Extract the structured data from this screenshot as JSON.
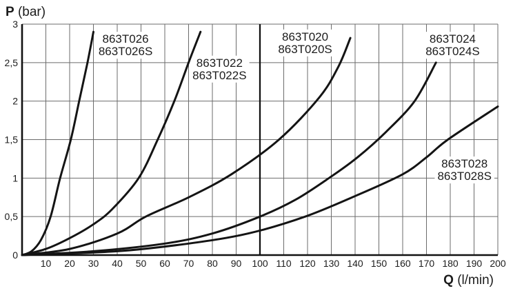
{
  "chart_data": {
    "type": "line",
    "title": "",
    "xlabel": {
      "symbol": "Q",
      "unit": " (l/min)"
    },
    "ylabel": {
      "symbol": "P",
      "unit": " (bar)"
    },
    "xlim": [
      0,
      200
    ],
    "ylim": [
      0,
      3
    ],
    "grid": {
      "x_step": 10,
      "y_step": 0.5,
      "grid_on": true,
      "bold_x_gridline": 100
    },
    "x_tick_labels": [
      "10",
      "20",
      "30",
      "40",
      "50",
      "60",
      "70",
      "80",
      "90",
      "100",
      "110",
      "120",
      "130",
      "140",
      "150",
      "160",
      "170",
      "180",
      "190",
      "200"
    ],
    "y_ticks": [
      {
        "label": "0",
        "value": 0
      },
      {
        "label": "0,5",
        "value": 0.5
      },
      {
        "label": "1",
        "value": 1
      },
      {
        "label": "1,5",
        "value": 1.5
      },
      {
        "label": "2",
        "value": 2
      },
      {
        "label": "2,5",
        "value": 2.5
      },
      {
        "label": "3",
        "value": 3
      }
    ],
    "series": [
      {
        "id": "863T026",
        "label_lines": [
          "863T026",
          "863T026S"
        ],
        "label_anchor": {
          "q": 43.5,
          "p": 2.73
        },
        "points": [
          [
            0,
            0
          ],
          [
            4,
            0.05
          ],
          [
            8,
            0.2
          ],
          [
            12,
            0.5
          ],
          [
            16,
            1.0
          ],
          [
            20.5,
            1.5
          ],
          [
            24,
            2.0
          ],
          [
            27.5,
            2.5
          ],
          [
            30,
            2.9
          ]
        ]
      },
      {
        "id": "863T022",
        "label_lines": [
          "863T022",
          "863T022S"
        ],
        "label_anchor": {
          "q": 83,
          "p": 2.42
        },
        "points": [
          [
            0,
            0
          ],
          [
            10,
            0.08
          ],
          [
            20,
            0.22
          ],
          [
            30,
            0.4
          ],
          [
            38,
            0.6
          ],
          [
            49,
            1.0
          ],
          [
            57,
            1.5
          ],
          [
            64,
            2.0
          ],
          [
            70,
            2.5
          ],
          [
            75,
            2.9
          ]
        ]
      },
      {
        "id": "863T020",
        "label_lines": [
          "863T020",
          "863T020S"
        ],
        "label_anchor": {
          "q": 119,
          "p": 2.76
        },
        "points": [
          [
            0,
            0
          ],
          [
            20,
            0.08
          ],
          [
            40,
            0.28
          ],
          [
            52,
            0.5
          ],
          [
            70,
            0.75
          ],
          [
            88,
            1.05
          ],
          [
            108,
            1.5
          ],
          [
            125,
            2.05
          ],
          [
            133,
            2.45
          ],
          [
            138,
            2.82
          ]
        ]
      },
      {
        "id": "863T024",
        "label_lines": [
          "863T024",
          "863T024S"
        ],
        "label_anchor": {
          "q": 181,
          "p": 2.73
        },
        "points": [
          [
            0,
            0
          ],
          [
            30,
            0.05
          ],
          [
            60,
            0.15
          ],
          [
            80,
            0.28
          ],
          [
            100,
            0.5
          ],
          [
            115,
            0.72
          ],
          [
            129,
            1.0
          ],
          [
            141,
            1.27
          ],
          [
            153,
            1.6
          ],
          [
            165,
            2.0
          ],
          [
            174,
            2.5
          ]
        ]
      },
      {
        "id": "863T028",
        "label_lines": [
          "863T028",
          "863T028S"
        ],
        "label_anchor": {
          "q": 186,
          "p": 1.11
        },
        "points": [
          [
            0,
            0
          ],
          [
            40,
            0.05
          ],
          [
            70,
            0.15
          ],
          [
            95,
            0.28
          ],
          [
            119,
            0.5
          ],
          [
            141,
            0.78
          ],
          [
            160,
            1.05
          ],
          [
            170,
            1.27
          ],
          [
            179,
            1.5
          ],
          [
            200,
            1.93
          ]
        ]
      }
    ],
    "colors": {
      "curve": "#141414",
      "grid": "#6b6b6b",
      "axis": "#111111",
      "background": "#ffffff",
      "text": "#1c1c1c"
    }
  }
}
